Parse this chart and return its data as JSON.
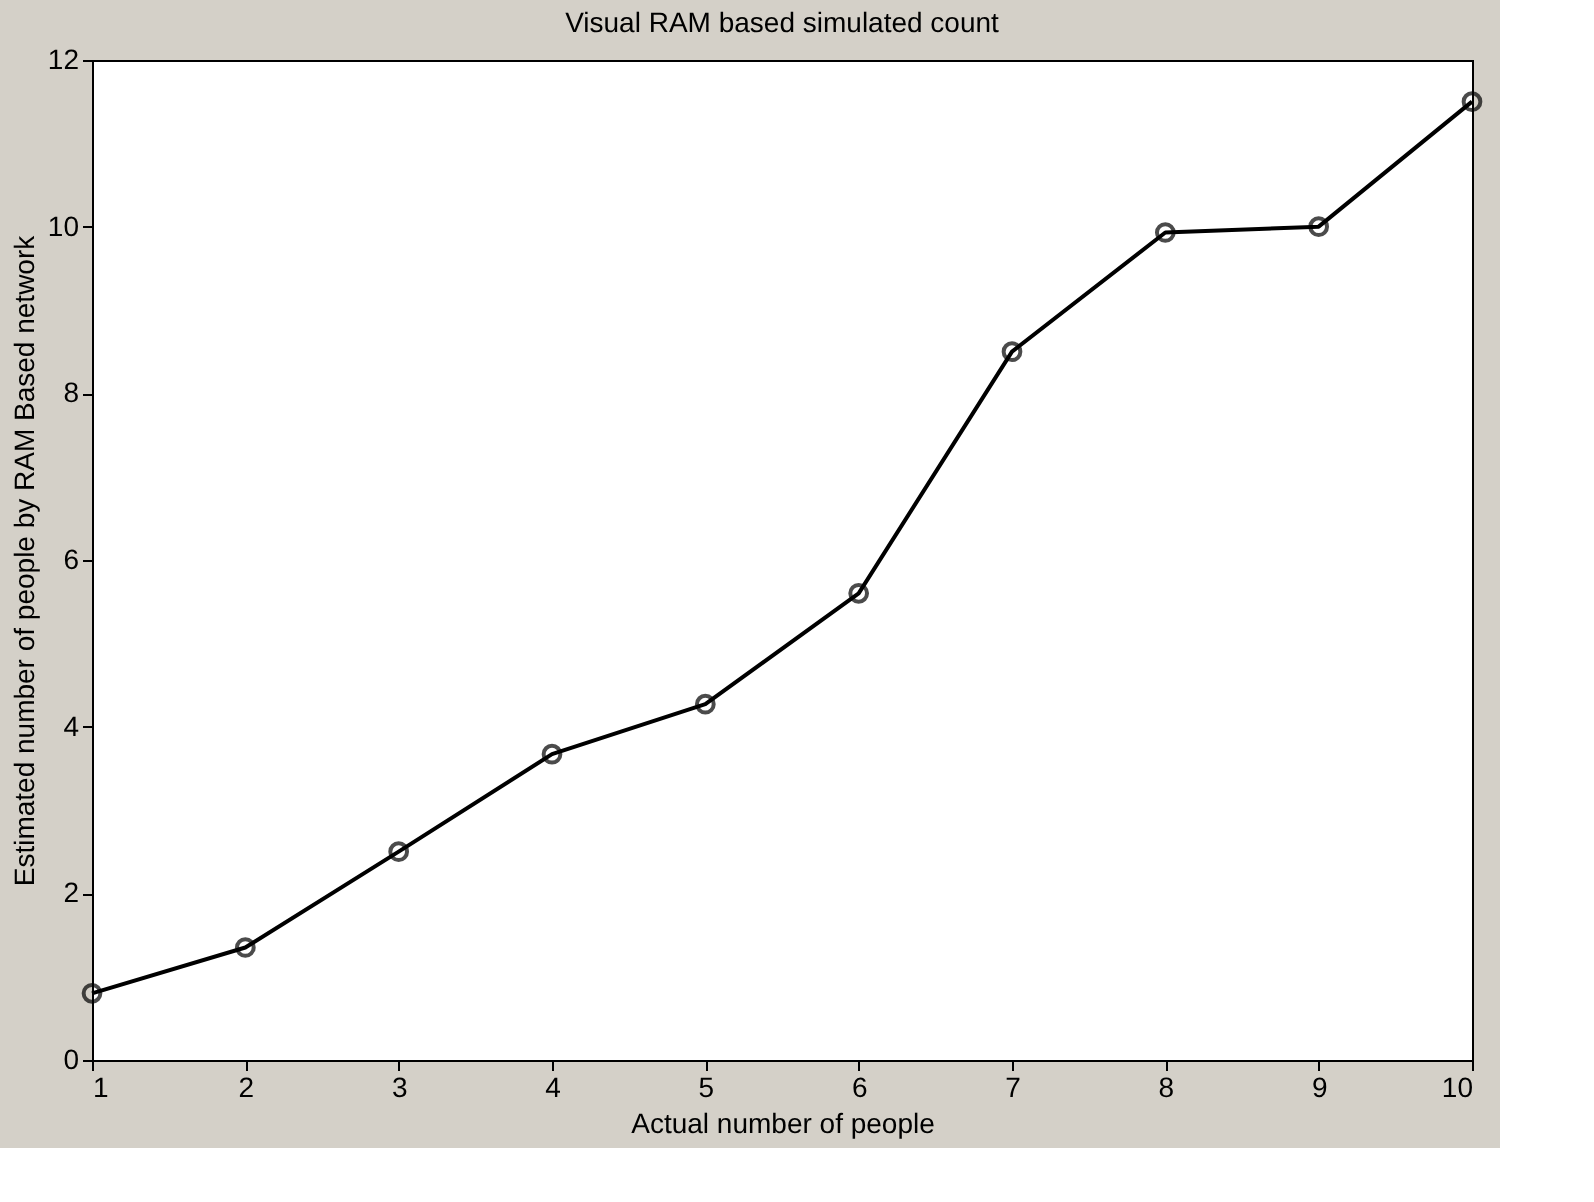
{
  "chart_data": {
    "type": "line",
    "title": "Visual RAM based simulated count",
    "xlabel": "Actual number of people",
    "ylabel": "Estimated number of people by RAM Based network",
    "x": [
      1,
      2,
      3,
      4,
      5,
      6,
      7,
      8,
      9,
      10
    ],
    "series": [
      {
        "color": "#000000",
        "values": [
          0.8,
          1.35,
          2.5,
          3.67,
          4.27,
          5.6,
          8.5,
          9.93,
          10.0,
          11.5
        ]
      }
    ],
    "xlim": [
      1,
      10
    ],
    "xticks": [
      1,
      2,
      3,
      4,
      5,
      6,
      7,
      8,
      9,
      10
    ],
    "ylim": [
      0,
      12
    ],
    "yticks": [
      0,
      2,
      4,
      6,
      8,
      10,
      12
    ],
    "grid": false,
    "marker": "circle",
    "line_style": "solid"
  }
}
